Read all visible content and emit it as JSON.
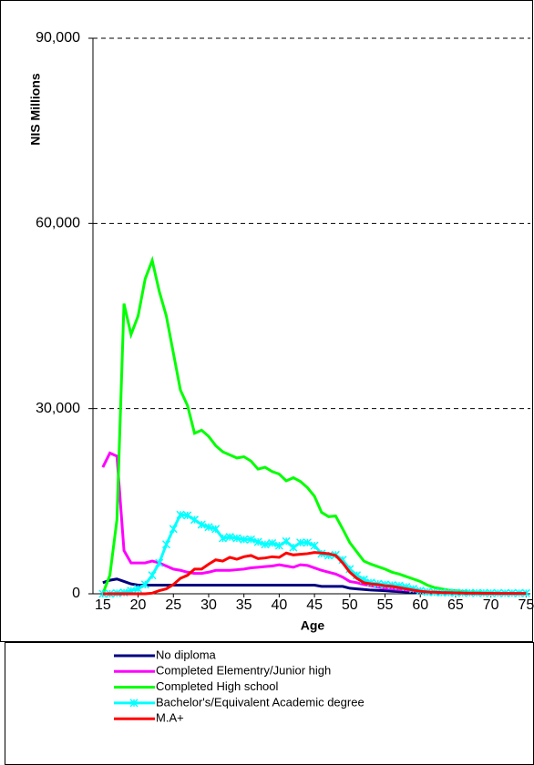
{
  "chart_data": {
    "type": "line",
    "y_label": "NIS Millions",
    "x_label": "Age",
    "x": [
      15,
      16,
      17,
      18,
      19,
      20,
      21,
      22,
      23,
      24,
      25,
      26,
      27,
      28,
      29,
      30,
      31,
      32,
      33,
      34,
      35,
      36,
      37,
      38,
      39,
      40,
      41,
      42,
      43,
      44,
      45,
      46,
      47,
      48,
      49,
      50,
      51,
      52,
      53,
      54,
      55,
      56,
      57,
      58,
      59,
      60,
      61,
      62,
      63,
      64,
      65,
      66,
      67,
      68,
      69,
      70,
      71,
      72,
      73,
      74,
      75
    ],
    "xlim": [
      13.6,
      75.6
    ],
    "xticks": [
      15,
      20,
      25,
      30,
      35,
      40,
      45,
      50,
      55,
      60,
      65,
      70,
      75
    ],
    "ylim": [
      0,
      90000
    ],
    "yticks": [
      0,
      {
        "value": 30000,
        "label": "30,000"
      },
      {
        "value": 60000,
        "label": "60,000"
      },
      {
        "value": 90000,
        "label": "90,000"
      }
    ],
    "grid": true,
    "series": [
      {
        "name": "No diploma",
        "color": "#000080",
        "values": [
          1800,
          2200,
          2400,
          2000,
          1600,
          1400,
          1400,
          1400,
          1400,
          1400,
          1400,
          1400,
          1400,
          1400,
          1400,
          1400,
          1400,
          1400,
          1400,
          1400,
          1400,
          1400,
          1400,
          1400,
          1400,
          1400,
          1400,
          1400,
          1400,
          1400,
          1400,
          1200,
          1200,
          1200,
          1200,
          900,
          800,
          700,
          600,
          550,
          500,
          400,
          350,
          300,
          250,
          200,
          180,
          150,
          130,
          110,
          100,
          90,
          80,
          70,
          60,
          50,
          50,
          50,
          50,
          50,
          50
        ]
      },
      {
        "name": "Completed Elementry/Junior high",
        "color": "#ff00ff",
        "values": [
          20500,
          22800,
          22300,
          7000,
          5000,
          5000,
          5000,
          5300,
          5000,
          4500,
          4000,
          3800,
          3500,
          3300,
          3300,
          3500,
          3800,
          3800,
          3800,
          3900,
          4000,
          4200,
          4300,
          4400,
          4500,
          4700,
          4500,
          4300,
          4700,
          4600,
          4200,
          3800,
          3500,
          3200,
          2700,
          2000,
          1800,
          1500,
          1300,
          1100,
          900,
          800,
          700,
          600,
          500,
          400,
          300,
          280,
          250,
          220,
          200,
          180,
          160,
          140,
          120,
          100,
          90,
          80,
          70,
          60,
          50
        ]
      },
      {
        "name": "Completed High school",
        "color": "#00ff00",
        "values": [
          0,
          3000,
          12000,
          47000,
          42000,
          45000,
          51000,
          54000,
          49000,
          45000,
          39000,
          33000,
          30500,
          26000,
          26500,
          25500,
          24000,
          23000,
          22500,
          22000,
          22200,
          21500,
          20200,
          20500,
          19800,
          19400,
          18300,
          18800,
          18200,
          17200,
          15800,
          13200,
          12500,
          12600,
          10500,
          8300,
          6800,
          5300,
          4800,
          4400,
          4000,
          3500,
          3200,
          2800,
          2400,
          2000,
          1400,
          1000,
          800,
          600,
          500,
          400,
          300,
          250,
          200,
          150,
          100,
          100,
          80,
          80,
          60
        ]
      },
      {
        "name": "Bachelor's/Equivalent Academic degree",
        "color": "#00ffff",
        "values": [
          0,
          0,
          100,
          200,
          500,
          800,
          1500,
          3000,
          5000,
          8000,
          10500,
          12800,
          12700,
          12000,
          11200,
          10800,
          10500,
          9000,
          9200,
          9000,
          8800,
          8800,
          8400,
          8000,
          8200,
          7800,
          8500,
          7500,
          8300,
          8300,
          7800,
          6500,
          6200,
          6300,
          5500,
          4000,
          3000,
          2300,
          1800,
          1600,
          1500,
          1400,
          1300,
          1100,
          800,
          500,
          300,
          250,
          200,
          180,
          160,
          150,
          140,
          130,
          120,
          110,
          100,
          100,
          100,
          100,
          100
        ]
      },
      {
        "name": "M.A+",
        "color": "#ff0000",
        "values": [
          0,
          0,
          0,
          0,
          0,
          0,
          0,
          100,
          500,
          800,
          1500,
          2500,
          3000,
          4000,
          4000,
          4800,
          5500,
          5300,
          5900,
          5600,
          6000,
          6200,
          5700,
          5800,
          6000,
          5900,
          6600,
          6300,
          6400,
          6500,
          6700,
          6600,
          6500,
          6200,
          5000,
          3500,
          2500,
          1800,
          1600,
          1500,
          1300,
          1200,
          1000,
          800,
          600,
          400,
          300,
          250,
          200,
          180,
          150,
          120,
          100,
          90,
          80,
          70,
          60,
          50,
          50,
          50,
          50
        ]
      }
    ]
  }
}
